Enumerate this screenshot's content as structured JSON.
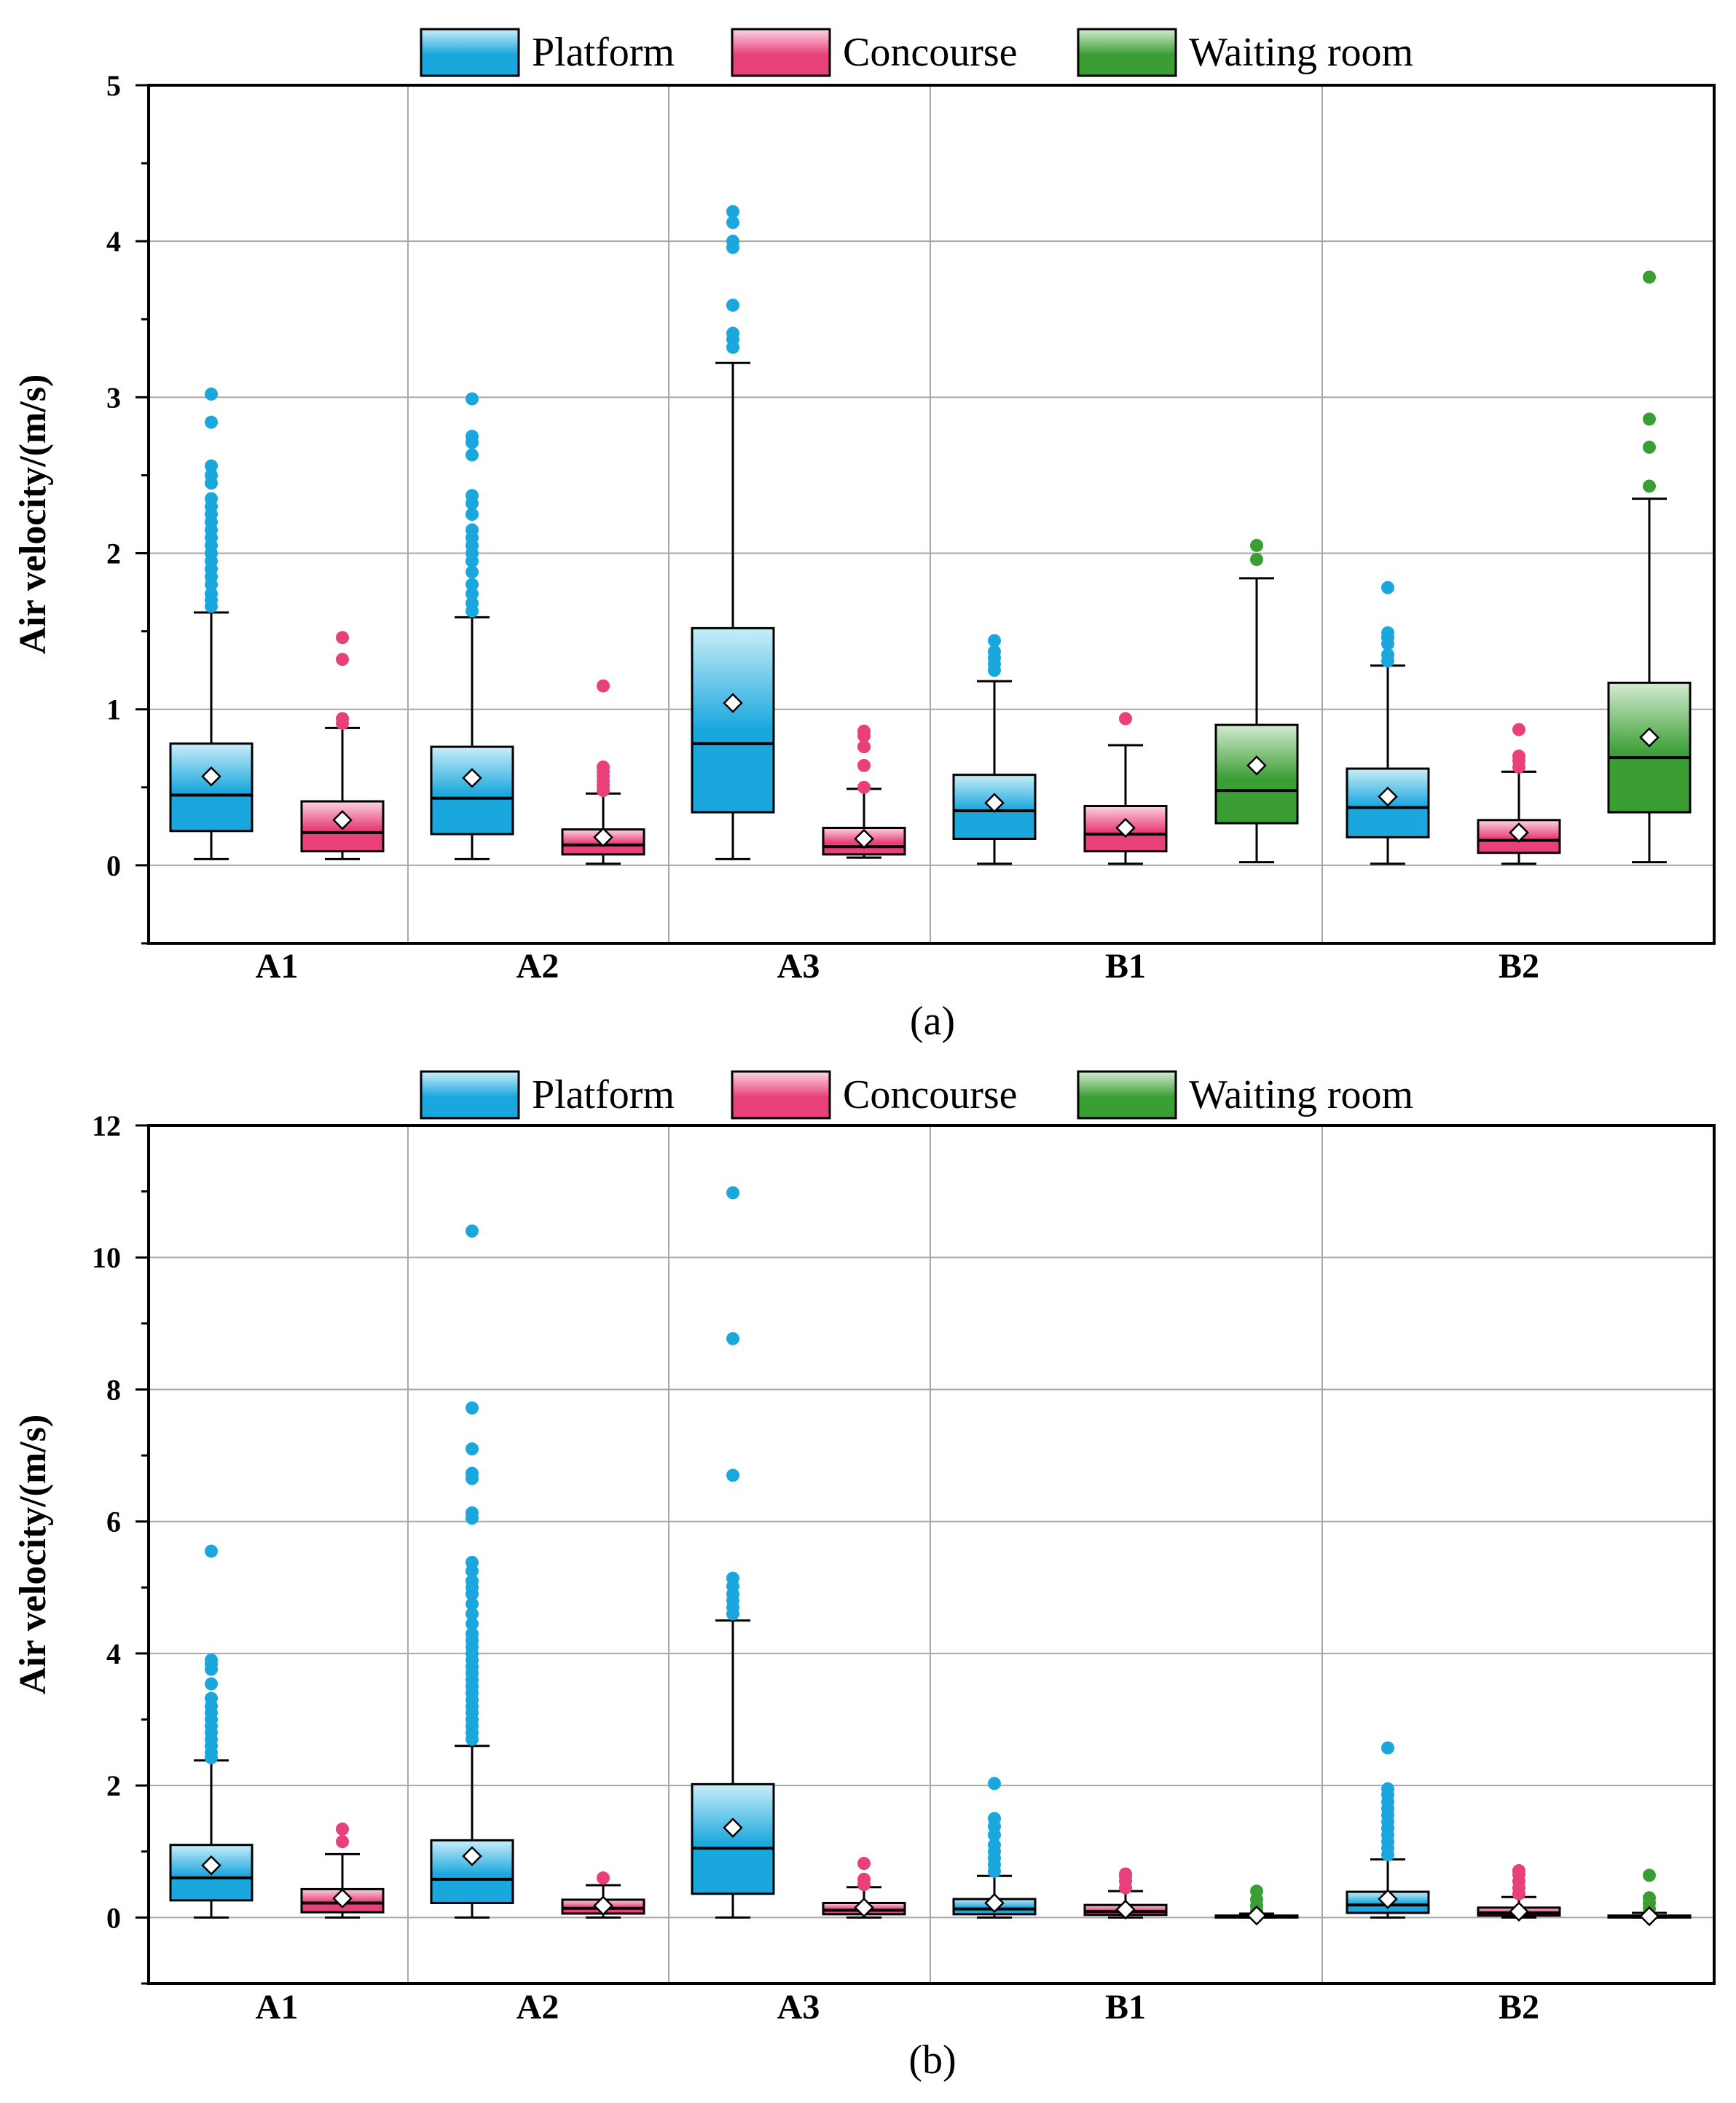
{
  "legend": [
    {
      "key": "platform",
      "label": "Platform",
      "color": "#1aa7dd",
      "light": "#c9eef9"
    },
    {
      "key": "concourse",
      "label": "Concourse",
      "color": "#e8407a",
      "light": "#fbd6e3"
    },
    {
      "key": "waiting",
      "label": "Waiting room",
      "color": "#3b9e35",
      "light": "#d4ebd0"
    }
  ],
  "chart_data": [
    {
      "type": "box",
      "panel_label": "(a)",
      "title": "",
      "xlabel": "",
      "ylabel": "Air velocity/(m/s)",
      "ylim": [
        -0.5,
        5
      ],
      "yticks": [
        0,
        1,
        2,
        3,
        4,
        5
      ],
      "grid": true,
      "legend_position": "top-center",
      "categories": [
        "A1",
        "A2",
        "A3",
        "B1",
        "B2"
      ],
      "groups": [
        {
          "category": "A1",
          "boxes": [
            {
              "series": "Platform",
              "whisker_low": 0.04,
              "q1": 0.22,
              "median": 0.45,
              "q3": 0.78,
              "whisker_high": 1.62,
              "mean": 0.57,
              "outliers": [
                1.66,
                1.7,
                1.74,
                1.8,
                1.85,
                1.9,
                1.95,
                2.0,
                2.05,
                2.1,
                2.15,
                2.2,
                2.25,
                2.3,
                2.35,
                2.45,
                2.5,
                2.56,
                2.84,
                3.02
              ]
            },
            {
              "series": "Concourse",
              "whisker_low": 0.04,
              "q1": 0.09,
              "median": 0.21,
              "q3": 0.41,
              "whisker_high": 0.88,
              "mean": 0.29,
              "outliers": [
                0.91,
                0.94,
                1.32,
                1.46
              ]
            }
          ]
        },
        {
          "category": "A2",
          "boxes": [
            {
              "series": "Platform",
              "whisker_low": 0.04,
              "q1": 0.2,
              "median": 0.43,
              "q3": 0.76,
              "whisker_high": 1.59,
              "mean": 0.56,
              "outliers": [
                1.63,
                1.68,
                1.74,
                1.8,
                1.88,
                1.95,
                2.0,
                2.05,
                2.1,
                2.15,
                2.25,
                2.32,
                2.37,
                2.63,
                2.71,
                2.75,
                2.99
              ]
            },
            {
              "series": "Concourse",
              "whisker_low": 0.01,
              "q1": 0.07,
              "median": 0.13,
              "q3": 0.23,
              "whisker_high": 0.46,
              "mean": 0.18,
              "outliers": [
                0.48,
                0.51,
                0.54,
                0.57,
                0.6,
                0.63,
                1.15
              ]
            }
          ]
        },
        {
          "category": "A3",
          "boxes": [
            {
              "series": "Platform",
              "whisker_low": 0.04,
              "q1": 0.34,
              "median": 0.78,
              "q3": 1.52,
              "whisker_high": 3.22,
              "mean": 1.04,
              "outliers": [
                3.32,
                3.37,
                3.41,
                3.59,
                3.96,
                4.0,
                4.12,
                4.19
              ]
            },
            {
              "series": "Concourse",
              "whisker_low": 0.05,
              "q1": 0.07,
              "median": 0.12,
              "q3": 0.24,
              "whisker_high": 0.49,
              "mean": 0.17,
              "outliers": [
                0.5,
                0.64,
                0.76,
                0.83,
                0.86
              ]
            }
          ]
        },
        {
          "category": "B1",
          "boxes": [
            {
              "series": "Platform",
              "whisker_low": 0.01,
              "q1": 0.17,
              "median": 0.35,
              "q3": 0.58,
              "whisker_high": 1.18,
              "mean": 0.4,
              "outliers": [
                1.25,
                1.29,
                1.33,
                1.37,
                1.44
              ]
            },
            {
              "series": "Concourse",
              "whisker_low": 0.01,
              "q1": 0.09,
              "median": 0.2,
              "q3": 0.38,
              "whisker_high": 0.77,
              "mean": 0.24,
              "outliers": [
                0.94
              ]
            },
            {
              "series": "Waiting room",
              "whisker_low": 0.02,
              "q1": 0.27,
              "median": 0.48,
              "q3": 0.9,
              "whisker_high": 1.84,
              "mean": 0.64,
              "outliers": [
                1.96,
                2.05
              ]
            }
          ]
        },
        {
          "category": "B2",
          "boxes": [
            {
              "series": "Platform",
              "whisker_low": 0.01,
              "q1": 0.18,
              "median": 0.37,
              "q3": 0.62,
              "whisker_high": 1.28,
              "mean": 0.44,
              "outliers": [
                1.31,
                1.35,
                1.42,
                1.46,
                1.49,
                1.78
              ]
            },
            {
              "series": "Concourse",
              "whisker_low": 0.01,
              "q1": 0.08,
              "median": 0.16,
              "q3": 0.29,
              "whisker_high": 0.6,
              "mean": 0.21,
              "outliers": [
                0.63,
                0.67,
                0.7,
                0.87
              ]
            },
            {
              "series": "Waiting room",
              "whisker_low": 0.02,
              "q1": 0.34,
              "median": 0.69,
              "q3": 1.17,
              "whisker_high": 2.35,
              "mean": 0.82,
              "outliers": [
                2.43,
                2.68,
                2.86,
                3.77
              ]
            }
          ]
        }
      ]
    },
    {
      "type": "box",
      "panel_label": "(b)",
      "title": "",
      "xlabel": "",
      "ylabel": "Air velocity/(m/s)",
      "ylim": [
        -1,
        12
      ],
      "yticks": [
        0,
        2,
        4,
        6,
        8,
        10,
        12
      ],
      "grid": true,
      "legend_position": "top-center",
      "categories": [
        "A1",
        "A2",
        "A3",
        "B1",
        "B2"
      ],
      "groups": [
        {
          "category": "A1",
          "boxes": [
            {
              "series": "Platform",
              "whisker_low": 0.0,
              "q1": 0.26,
              "median": 0.6,
              "q3": 1.1,
              "whisker_high": 2.38,
              "mean": 0.79,
              "outliers": [
                2.42,
                2.5,
                2.6,
                2.7,
                2.8,
                2.9,
                3.0,
                3.1,
                3.2,
                3.32,
                3.54,
                3.76,
                3.84,
                3.9,
                5.55
              ]
            },
            {
              "series": "Concourse",
              "whisker_low": 0.0,
              "q1": 0.08,
              "median": 0.22,
              "q3": 0.43,
              "whisker_high": 0.96,
              "mean": 0.29,
              "outliers": [
                1.15,
                1.34
              ]
            }
          ]
        },
        {
          "category": "A2",
          "boxes": [
            {
              "series": "Platform",
              "whisker_low": 0.0,
              "q1": 0.22,
              "median": 0.58,
              "q3": 1.17,
              "whisker_high": 2.6,
              "mean": 0.93,
              "outliers": [
                2.7,
                2.8,
                2.9,
                3.0,
                3.1,
                3.2,
                3.3,
                3.4,
                3.5,
                3.6,
                3.7,
                3.8,
                3.9,
                4.0,
                4.1,
                4.2,
                4.3,
                4.45,
                4.6,
                4.75,
                4.9,
                5.0,
                5.1,
                5.25,
                5.38,
                6.05,
                6.13,
                6.65,
                6.73,
                7.1,
                7.72,
                10.4
              ]
            },
            {
              "series": "Concourse",
              "whisker_low": 0.0,
              "q1": 0.06,
              "median": 0.14,
              "q3": 0.27,
              "whisker_high": 0.49,
              "mean": 0.18,
              "outliers": [
                0.6
              ]
            }
          ]
        },
        {
          "category": "A3",
          "boxes": [
            {
              "series": "Platform",
              "whisker_low": 0.0,
              "q1": 0.36,
              "median": 1.05,
              "q3": 2.02,
              "whisker_high": 4.5,
              "mean": 1.36,
              "outliers": [
                4.6,
                4.7,
                4.8,
                4.9,
                5.02,
                5.14,
                6.7,
                8.77,
                10.98
              ]
            },
            {
              "series": "Concourse",
              "whisker_low": 0.0,
              "q1": 0.05,
              "median": 0.11,
              "q3": 0.22,
              "whisker_high": 0.46,
              "mean": 0.15,
              "outliers": [
                0.5,
                0.58,
                0.82
              ]
            }
          ]
        },
        {
          "category": "B1",
          "boxes": [
            {
              "series": "Platform",
              "whisker_low": 0.0,
              "q1": 0.05,
              "median": 0.13,
              "q3": 0.28,
              "whisker_high": 0.63,
              "mean": 0.22,
              "outliers": [
                0.7,
                0.8,
                0.9,
                1.0,
                1.1,
                1.25,
                1.38,
                1.5,
                2.03
              ]
            },
            {
              "series": "Concourse",
              "whisker_low": 0.0,
              "q1": 0.04,
              "median": 0.09,
              "q3": 0.19,
              "whisker_high": 0.4,
              "mean": 0.12,
              "outliers": [
                0.45,
                0.55,
                0.62,
                0.66
              ]
            },
            {
              "series": "Waiting room",
              "whisker_low": 0.0,
              "q1": 0.0,
              "median": 0.01,
              "q3": 0.03,
              "whisker_high": 0.06,
              "mean": 0.03,
              "outliers": [
                0.1,
                0.18,
                0.27,
                0.4
              ]
            }
          ]
        },
        {
          "category": "B2",
          "boxes": [
            {
              "series": "Platform",
              "whisker_low": 0.0,
              "q1": 0.07,
              "median": 0.19,
              "q3": 0.39,
              "whisker_high": 0.88,
              "mean": 0.28,
              "outliers": [
                0.95,
                1.05,
                1.15,
                1.25,
                1.35,
                1.45,
                1.55,
                1.65,
                1.75,
                1.86,
                1.95,
                2.57
              ]
            },
            {
              "series": "Concourse",
              "whisker_low": 0.0,
              "q1": 0.03,
              "median": 0.07,
              "q3": 0.15,
              "whisker_high": 0.31,
              "mean": 0.09,
              "outliers": [
                0.36,
                0.45,
                0.55,
                0.65,
                0.71
              ]
            },
            {
              "series": "Waiting room",
              "whisker_low": 0.0,
              "q1": 0.0,
              "median": 0.01,
              "q3": 0.03,
              "whisker_high": 0.07,
              "mean": 0.02,
              "outliers": [
                0.13,
                0.22,
                0.3,
                0.64
              ]
            }
          ]
        }
      ]
    }
  ]
}
